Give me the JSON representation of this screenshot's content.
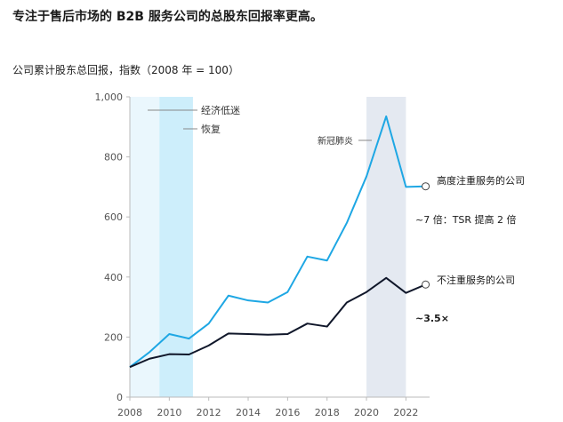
{
  "headline": "专注于售后市场的 B2B 服务公司的总股东回报率更高。",
  "chart_data": {
    "type": "line",
    "title": "公司累计股东总回报，指数（2008 年 = 100）",
    "x": [
      2008,
      2009,
      2010,
      2011,
      2012,
      2013,
      2014,
      2015,
      2016,
      2017,
      2018,
      2019,
      2020,
      2021,
      2022,
      2023
    ],
    "xticks": [
      "2008",
      "2010",
      "2012",
      "2014",
      "2016",
      "2018",
      "2020",
      "2022"
    ],
    "yticks": [
      "0",
      "200",
      "400",
      "600",
      "800",
      "1,000"
    ],
    "xlim": [
      2008,
      2023.2
    ],
    "ylim": [
      0,
      1000
    ],
    "series": [
      {
        "name": "高度注重服务的公司",
        "color": "#1ea7e4",
        "values": [
          100,
          150,
          210,
          195,
          245,
          338,
          322,
          315,
          350,
          468,
          455,
          580,
          735,
          935,
          700,
          702
        ]
      },
      {
        "name": "不注重服务的公司",
        "color": "#10172a",
        "values": [
          100,
          128,
          143,
          142,
          172,
          212,
          210,
          208,
          210,
          245,
          235,
          315,
          350,
          397,
          347,
          375
        ]
      }
    ],
    "annotations": {
      "multiple_high": "~7 倍：TSR 提高 2 倍",
      "multiple_low": "~3.5×"
    },
    "bands": [
      {
        "label": "经济低迷",
        "from": 2008,
        "to": 2009.5,
        "color": "#eaf7fd"
      },
      {
        "label": "恢复",
        "from": 2009.5,
        "to": 2011.2,
        "color": "#cdeefb"
      },
      {
        "label": "新冠肺炎",
        "from": 2020,
        "to": 2022,
        "color": "#e4e9f1"
      }
    ],
    "grid": false
  }
}
